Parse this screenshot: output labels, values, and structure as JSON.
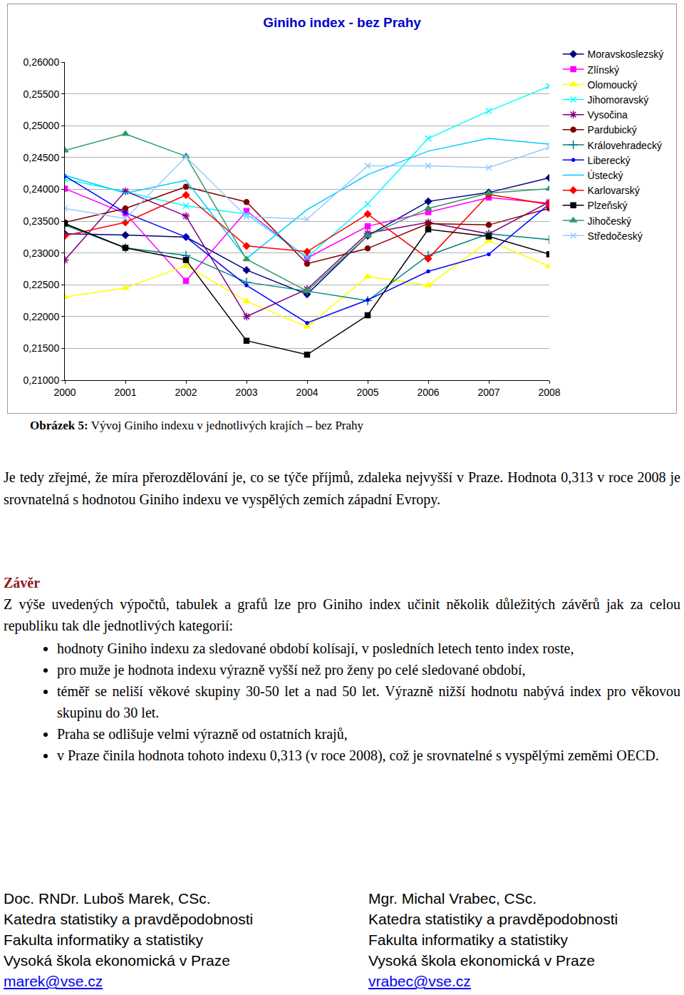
{
  "chart_data": {
    "type": "line",
    "title": "Giniho index - bez Prahy",
    "x": [
      2000,
      2001,
      2002,
      2003,
      2004,
      2005,
      2006,
      2007,
      2008
    ],
    "xlim": [
      2000,
      2008
    ],
    "xticks": [
      2000,
      2001,
      2002,
      2003,
      2004,
      2005,
      2006,
      2007,
      2008
    ],
    "ylim": [
      0.21,
      0.26
    ],
    "yticks": [
      {
        "value": 0.21,
        "label": "0,21000"
      },
      {
        "value": 0.215,
        "label": "0,21500"
      },
      {
        "value": 0.22,
        "label": "0,22000"
      },
      {
        "value": 0.225,
        "label": "0,22500"
      },
      {
        "value": 0.23,
        "label": "0,23000"
      },
      {
        "value": 0.235,
        "label": "0,23500"
      },
      {
        "value": 0.24,
        "label": "0,24000"
      },
      {
        "value": 0.245,
        "label": "0,24500"
      },
      {
        "value": 0.25,
        "label": "0,25000"
      },
      {
        "value": 0.255,
        "label": "0,25500"
      },
      {
        "value": 0.26,
        "label": "0,26000"
      }
    ],
    "grid": true,
    "legend": "right",
    "series": [
      {
        "name": "Moravskoslezský",
        "color": "#000080",
        "marker": "diamond",
        "values": [
          0.233,
          0.2328,
          0.2325,
          0.2273,
          0.2235,
          0.2327,
          0.2381,
          0.2395,
          0.2418
        ]
      },
      {
        "name": "Zlínský",
        "color": "#ff00ff",
        "marker": "square",
        "values": [
          0.2401,
          0.2362,
          0.2256,
          0.2366,
          0.2292,
          0.2342,
          0.2364,
          0.2387,
          0.2378
        ]
      },
      {
        "name": "Olomoucký",
        "color": "#ffff00",
        "marker": "triangle",
        "values": [
          0.2231,
          0.2245,
          0.228,
          0.2224,
          0.2184,
          0.2263,
          0.2249,
          0.2319,
          0.2279
        ]
      },
      {
        "name": "Jihomoravský",
        "color": "#00ffff",
        "marker": "x",
        "values": [
          0.2416,
          0.2396,
          0.2374,
          0.2361,
          0.2293,
          0.2377,
          0.248,
          0.2523,
          0.2562
        ]
      },
      {
        "name": "Vysočina",
        "color": "#800080",
        "marker": "star",
        "values": [
          0.2289,
          0.2397,
          0.2358,
          0.22,
          0.2243,
          0.2331,
          0.2348,
          0.233,
          0.238
        ]
      },
      {
        "name": "Pardubický",
        "color": "#800000",
        "marker": "circle",
        "values": [
          0.2348,
          0.237,
          0.2404,
          0.238,
          0.2283,
          0.2307,
          0.2346,
          0.2344,
          0.237
        ]
      },
      {
        "name": "Královehradecký",
        "color": "#008080",
        "marker": "plus",
        "values": [
          0.2344,
          0.2308,
          0.2296,
          0.2254,
          0.224,
          0.2225,
          0.2296,
          0.233,
          0.2321
        ]
      },
      {
        "name": "Liberecký",
        "color": "#0000ff",
        "marker": "dot",
        "values": [
          0.2421,
          0.2363,
          0.2325,
          0.2249,
          0.219,
          0.2226,
          0.2271,
          0.2298,
          0.2377
        ]
      },
      {
        "name": "Ústecký",
        "color": "#00ccff",
        "marker": "none",
        "values": [
          0.2422,
          0.2394,
          0.2414,
          0.2291,
          0.2368,
          0.2423,
          0.246,
          0.248,
          0.2471
        ]
      },
      {
        "name": "Karlovarský",
        "color": "#ff0000",
        "marker": "diamond",
        "values": [
          0.2327,
          0.2348,
          0.2391,
          0.2311,
          0.2302,
          0.2361,
          0.2291,
          0.2392,
          0.2376
        ]
      },
      {
        "name": "Plzeňský",
        "color": "#000000",
        "marker": "square",
        "values": [
          0.2346,
          0.2308,
          0.2289,
          0.2162,
          0.214,
          0.2202,
          0.2337,
          0.2326,
          0.2298
        ]
      },
      {
        "name": "Jihočeský",
        "color": "#339966",
        "marker": "triangle",
        "values": [
          0.2461,
          0.2487,
          0.2452,
          0.229,
          0.224,
          0.2327,
          0.237,
          0.2394,
          0.2401
        ]
      },
      {
        "name": "Středočeský",
        "color": "#99ccff",
        "marker": "x",
        "values": [
          0.237,
          0.2354,
          0.2451,
          0.2357,
          0.2353,
          0.2437,
          0.2437,
          0.2434,
          0.2466
        ]
      }
    ]
  },
  "document": {
    "caption": {
      "label": "Obrázek 5:",
      "text": "Vývoj Giniho indexu v jednotlivých krajích – bez Prahy"
    },
    "paragraph": "Je tedy zřejmé, že míra přerozdělování je, co se týče příjmů, zdaleka nejvyšší v Praze. Hodnota 0,313 v roce 2008 je srovnatelná s hodnotou Giniho indexu ve vyspělých zemích západní Evropy.",
    "conclusion": {
      "heading": "Závěr",
      "intro": "Z výše uvedených výpočtů, tabulek a grafů lze pro Giniho index učinit několik důležitých závěrů jak za celou republiku tak dle jednotlivých kategorií:",
      "bullets": [
        "hodnoty Giniho indexu za sledované období kolísají, v posledních letech tento index roste,",
        "pro muže je hodnota indexu výrazně vyšší než pro ženy po celé sledované období,",
        "téměř se neliší věkové skupiny 30-50 let a nad 50 let. Výrazně nižší hodnotu nabývá index pro věkovou skupinu do 30 let.",
        "Praha se odlišuje velmi výrazně od ostatních krajů,",
        "v Praze činila hodnota tohoto indexu 0,313 (v roce 2008), což je srovnatelné s vyspělými zeměmi OECD."
      ]
    },
    "authors": [
      {
        "name": "Doc. RNDr. Luboš Marek, CSc.",
        "department": "Katedra statistiky a pravděpodobnosti",
        "faculty": "Fakulta informatiky a statistiky",
        "school": "Vysoká škola ekonomická v Praze",
        "email": "marek@vse.cz"
      },
      {
        "name": "Mgr. Michal Vrabec, CSc.",
        "department": "Katedra statistiky a pravděpodobnosti",
        "faculty": "Fakulta informatiky a statistiky",
        "school": "Vysoká škola ekonomická v Praze",
        "email": "vrabec@vse.cz"
      }
    ]
  }
}
